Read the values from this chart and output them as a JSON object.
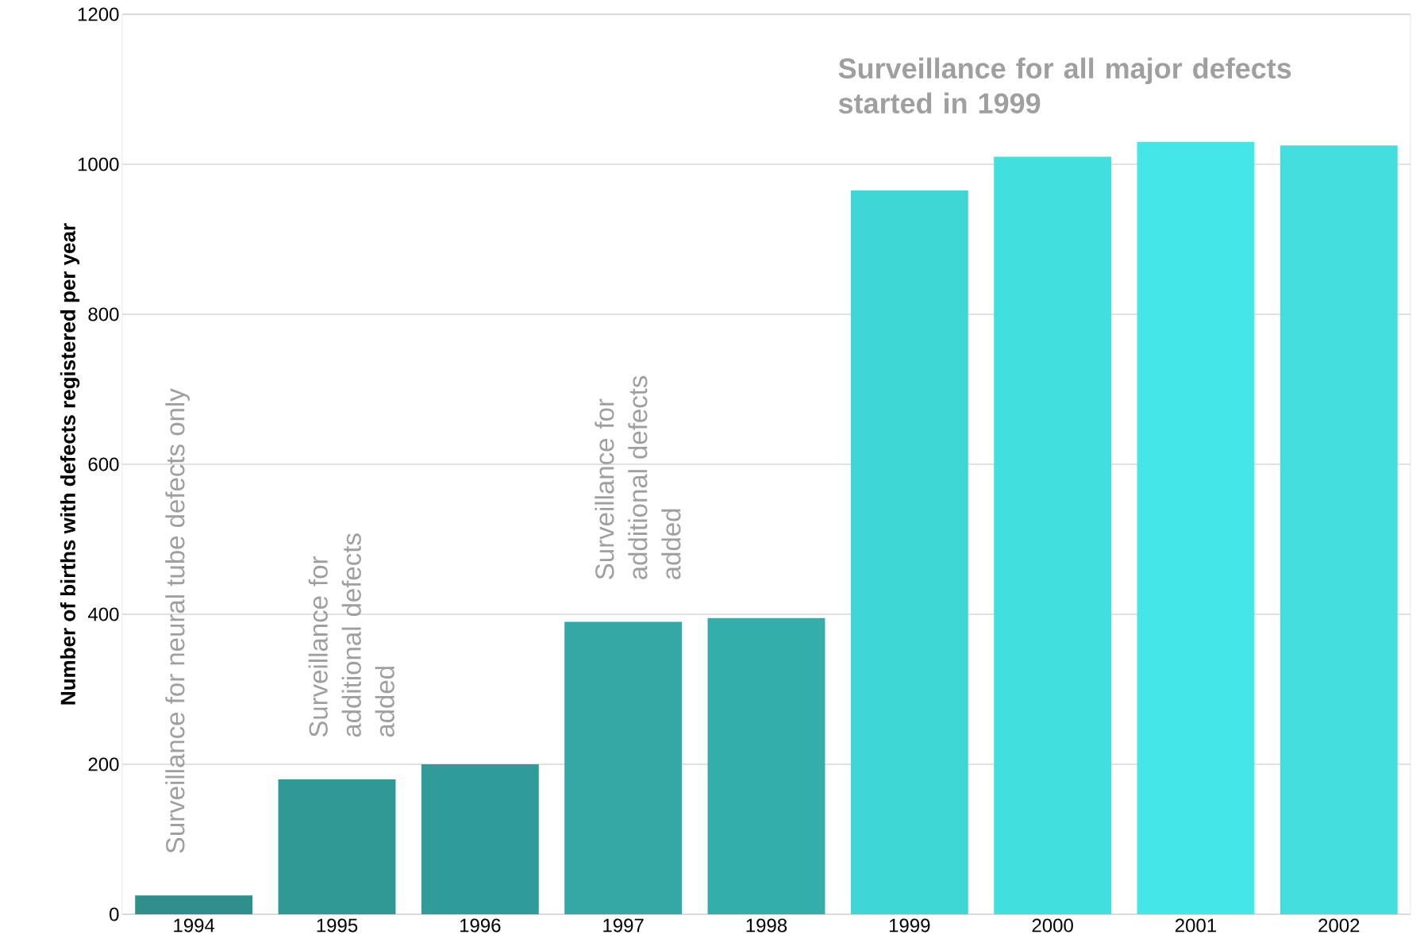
{
  "chart_data": {
    "type": "bar",
    "ylabel": "Number of births with defects registered per year",
    "categories": [
      "1994",
      "1995",
      "1996",
      "1997",
      "1998",
      "1999",
      "2000",
      "2001",
      "2002"
    ],
    "values": [
      25,
      180,
      200,
      390,
      395,
      965,
      1010,
      1030,
      1025
    ],
    "colors": [
      "#2e8f8c",
      "#2f9794",
      "#309c99",
      "#33a8a5",
      "#34aeab",
      "#3fd6d6",
      "#42dfdf",
      "#45e6e6",
      "#42dede"
    ],
    "ylim": [
      0,
      1200
    ],
    "yticks": [
      0,
      200,
      400,
      600,
      800,
      1000,
      1200
    ],
    "grid": "y",
    "annotations": [
      "Surveillance for neural tube defects only",
      "Surveillance for additional defects added",
      "Surveillance for additional defects added",
      "Surveillance for all major defects started in 1999"
    ]
  }
}
